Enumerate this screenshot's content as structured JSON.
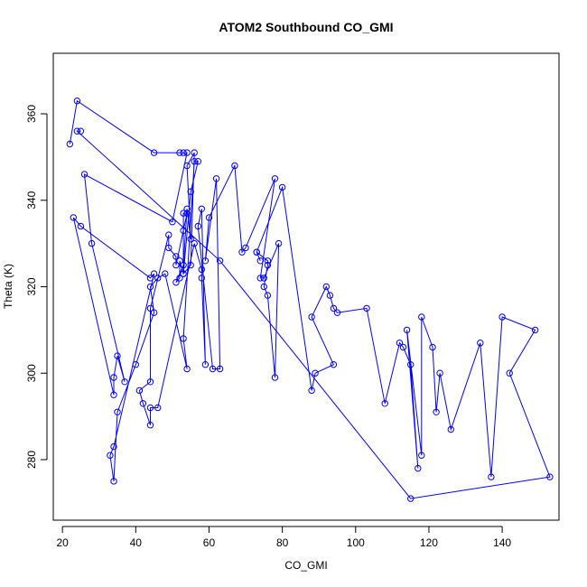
{
  "chart_data": {
    "type": "line",
    "title": "ATOM2 Southbound CO_GMI",
    "xlabel": "CO_GMI",
    "ylabel": "Theta (K)",
    "xlim": [
      17.5,
      155.5
    ],
    "ylim": [
      266,
      374
    ],
    "xticks": [
      20,
      40,
      60,
      80,
      100,
      120,
      140
    ],
    "yticks": [
      280,
      300,
      320,
      340,
      360
    ],
    "grid": false,
    "markers": "open-circle",
    "series": [
      {
        "color": "#0000ff",
        "points": [
          [
            22,
            353
          ],
          [
            24,
            363
          ],
          [
            45,
            351
          ],
          [
            52,
            351
          ],
          [
            53,
            351
          ],
          [
            54,
            351
          ],
          [
            50,
            335
          ],
          [
            26,
            346
          ],
          [
            28,
            330
          ],
          [
            37,
            298
          ],
          [
            35,
            304
          ],
          [
            34,
            299
          ],
          [
            34,
            295
          ],
          [
            23,
            336
          ],
          [
            25,
            334
          ],
          [
            44,
            322
          ],
          [
            45,
            323
          ],
          [
            34,
            283
          ],
          [
            33,
            281
          ],
          [
            34,
            275
          ],
          [
            35,
            291
          ],
          [
            40,
            302
          ],
          [
            45,
            314
          ],
          [
            44,
            320
          ],
          [
            46,
            322
          ],
          [
            48,
            323
          ],
          [
            54,
            301
          ],
          [
            53,
            308
          ],
          [
            56,
            349
          ],
          [
            57,
            349
          ],
          [
            55,
            342
          ],
          [
            53,
            323
          ],
          [
            52,
            326
          ],
          [
            52,
            322
          ],
          [
            51,
            321
          ],
          [
            53,
            325
          ],
          [
            54,
            338
          ],
          [
            55,
            331
          ],
          [
            54,
            348
          ],
          [
            56,
            351
          ],
          [
            55,
            325
          ],
          [
            53,
            323
          ],
          [
            53,
            333
          ],
          [
            53,
            337
          ],
          [
            54,
            337
          ],
          [
            51,
            325
          ],
          [
            51,
            327
          ],
          [
            49,
            329
          ],
          [
            49,
            332
          ],
          [
            44,
            315
          ],
          [
            44,
            298
          ],
          [
            41,
            296
          ],
          [
            42,
            293
          ],
          [
            44,
            288
          ],
          [
            44,
            292
          ],
          [
            46,
            292
          ],
          [
            56,
            330
          ],
          [
            58,
            324
          ],
          [
            58,
            322
          ],
          [
            59,
            302
          ],
          [
            58,
            338
          ],
          [
            57,
            334
          ],
          [
            61,
            301
          ],
          [
            63,
            301
          ],
          [
            62,
            345
          ],
          [
            59,
            326
          ],
          [
            60,
            336
          ],
          [
            67,
            348
          ],
          [
            69,
            328
          ],
          [
            70,
            329
          ],
          [
            78,
            345
          ],
          [
            74,
            322
          ],
          [
            75,
            322
          ],
          [
            79,
            330
          ],
          [
            78,
            299
          ],
          [
            76,
            318
          ],
          [
            75,
            320
          ],
          [
            76,
            325
          ],
          [
            76,
            326
          ],
          [
            73,
            328
          ],
          [
            74,
            326
          ],
          [
            73,
            328
          ],
          [
            80,
            343
          ],
          [
            88,
            296
          ],
          [
            89,
            300
          ],
          [
            94,
            302
          ],
          [
            88,
            313
          ],
          [
            92,
            320
          ],
          [
            93,
            318
          ],
          [
            94,
            315
          ],
          [
            95,
            314
          ],
          [
            103,
            315
          ],
          [
            108,
            293
          ],
          [
            112,
            307
          ],
          [
            113,
            306
          ],
          [
            115,
            302
          ],
          [
            117,
            278
          ],
          [
            114,
            310
          ],
          [
            118,
            281
          ],
          [
            118,
            313
          ],
          [
            121,
            306
          ],
          [
            122,
            291
          ],
          [
            123,
            300
          ],
          [
            126,
            287
          ],
          [
            134,
            307
          ],
          [
            137,
            276
          ],
          [
            140,
            313
          ],
          [
            149,
            310
          ],
          [
            142,
            300
          ],
          [
            153,
            276
          ],
          [
            115,
            271
          ],
          [
            63,
            326
          ],
          [
            24,
            356
          ],
          [
            25,
            356
          ]
        ]
      }
    ]
  }
}
